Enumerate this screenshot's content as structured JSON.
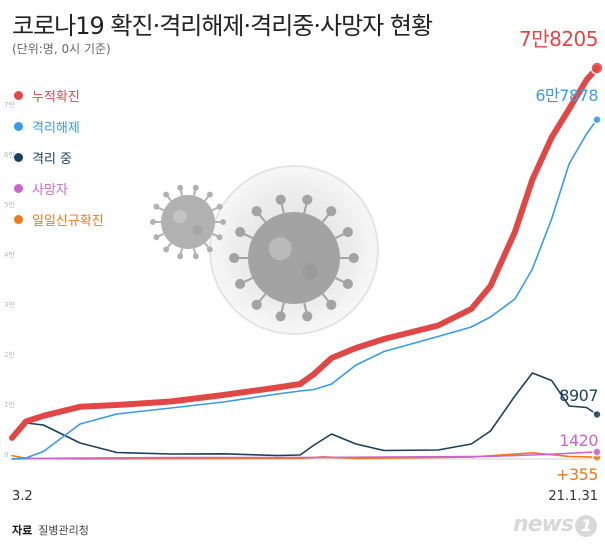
{
  "header": {
    "title": "코로나19 확진·격리해제·격리중·사망자 현황",
    "subtitle": "(단위:명, 0시 기준)"
  },
  "footer": {
    "source_label": "자료",
    "source_text": "질병관리청",
    "logo_text": "news",
    "logo_mark": "1"
  },
  "chart_data": {
    "type": "line",
    "title": "코로나19 확진·격리해제·격리중·사망자 현황",
    "subtitle": "(단위:명, 0시 기준)",
    "x_start_label": "3.2",
    "x_end_label": "21.1.31",
    "x_range": [
      "2020-03-02",
      "2021-01-31"
    ],
    "ylim": [
      0,
      80000
    ],
    "y_ticks": [
      {
        "value": 0,
        "label": "0"
      },
      {
        "value": 10000,
        "label": "1만"
      },
      {
        "value": 20000,
        "label": "2만"
      },
      {
        "value": 30000,
        "label": "3만"
      },
      {
        "value": 40000,
        "label": "4만"
      },
      {
        "value": 50000,
        "label": "5만"
      },
      {
        "value": 60000,
        "label": "6만"
      },
      {
        "value": 70000,
        "label": "7만"
      }
    ],
    "grid": false,
    "legend_position": "top-left",
    "series": [
      {
        "name": "누적확진",
        "color": "#e04848",
        "end_label": "7만8205",
        "x": [
          "2020-03-02",
          "2020-03-10",
          "2020-03-20",
          "2020-04-10",
          "2020-05-01",
          "2020-06-01",
          "2020-07-01",
          "2020-08-01",
          "2020-08-14",
          "2020-08-22",
          "2020-09-01",
          "2020-09-15",
          "2020-10-01",
          "2020-11-01",
          "2020-11-20",
          "2020-12-01",
          "2020-12-15",
          "2020-12-25",
          "2021-01-05",
          "2021-01-15",
          "2021-01-25",
          "2021-01-31"
        ],
        "values": [
          4212,
          7500,
          8650,
          10450,
          10800,
          11500,
          12800,
          14300,
          15000,
          17000,
          20200,
          22200,
          24000,
          26700,
          30000,
          34600,
          45400,
          55900,
          64300,
          70000,
          75800,
          78205
        ]
      },
      {
        "name": "격리해제",
        "color": "#3a9ae8",
        "end_label": "6만7878",
        "x": [
          "2020-03-02",
          "2020-03-10",
          "2020-03-20",
          "2020-04-10",
          "2020-05-01",
          "2020-06-01",
          "2020-07-01",
          "2020-08-01",
          "2020-08-14",
          "2020-08-22",
          "2020-09-01",
          "2020-09-15",
          "2020-10-01",
          "2020-11-01",
          "2020-11-20",
          "2020-12-01",
          "2020-12-15",
          "2020-12-25",
          "2021-01-05",
          "2021-01-15",
          "2021-01-25",
          "2021-01-31"
        ],
        "values": [
          30,
          200,
          1500,
          7000,
          9000,
          10200,
          11400,
          13000,
          13600,
          13900,
          15000,
          18800,
          21500,
          24500,
          26400,
          28400,
          32000,
          38000,
          48000,
          59000,
          65000,
          67878
        ]
      },
      {
        "name": "격리 중",
        "color": "#1c3f5e",
        "end_label": "8907",
        "x": [
          "2020-03-02",
          "2020-03-10",
          "2020-03-20",
          "2020-04-10",
          "2020-05-01",
          "2020-06-01",
          "2020-07-01",
          "2020-08-01",
          "2020-08-14",
          "2020-08-22",
          "2020-09-01",
          "2020-09-15",
          "2020-10-01",
          "2020-11-01",
          "2020-11-20",
          "2020-12-01",
          "2020-12-15",
          "2020-12-25",
          "2021-01-05",
          "2021-01-15",
          "2021-01-25",
          "2021-01-31"
        ],
        "values": [
          4100,
          7200,
          6800,
          3200,
          1300,
          1000,
          1050,
          700,
          800,
          2800,
          5000,
          3000,
          1700,
          1800,
          3000,
          5600,
          12600,
          17200,
          15700,
          10600,
          10300,
          8907
        ]
      },
      {
        "name": "사망자",
        "color": "#cc66cc",
        "end_label": "1420",
        "x": [
          "2020-03-02",
          "2020-04-01",
          "2020-06-01",
          "2020-09-01",
          "2020-12-01",
          "2021-01-01",
          "2021-01-31"
        ],
        "values": [
          22,
          160,
          270,
          320,
          520,
          900,
          1420
        ]
      },
      {
        "name": "일일신규확진",
        "color": "#f07a1a",
        "end_label": "+355",
        "x": [
          "2020-03-02",
          "2020-03-10",
          "2020-04-10",
          "2020-08-14",
          "2020-08-27",
          "2020-09-15",
          "2020-11-20",
          "2020-12-25",
          "2021-01-15",
          "2021-01-31"
        ],
        "values": [
          686,
          131,
          27,
          103,
          441,
          113,
          386,
          1241,
          520,
          355
        ]
      }
    ]
  }
}
